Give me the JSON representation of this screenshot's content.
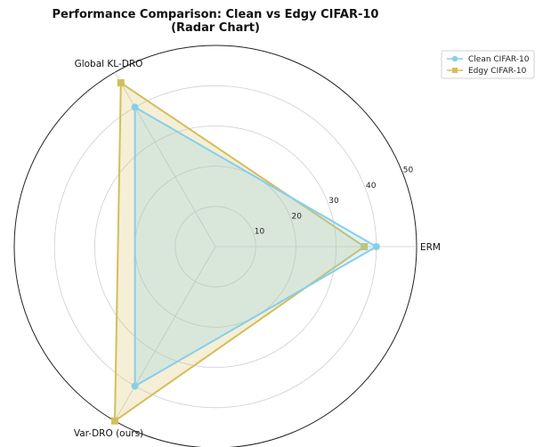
{
  "chart_data": {
    "type": "radar",
    "title_lines": [
      "Performance Comparison: Clean vs Edgy CIFAR-10",
      "(Radar Chart)"
    ],
    "axes": [
      "ERM",
      "Global KL-DRO",
      "Var-DRO (ours)"
    ],
    "radial_ticks": [
      10,
      20,
      30,
      40,
      50
    ],
    "rlim": [
      0,
      50
    ],
    "grid": true,
    "legend_position": "top-right",
    "series": [
      {
        "name": "Clean CIFAR-10",
        "values": [
          40,
          40,
          40
        ],
        "color": "#87CEEB",
        "marker": "circle"
      },
      {
        "name": "Edgy CIFAR-10",
        "values": [
          37,
          47,
          50
        ],
        "color": "#D4BE5A",
        "marker": "square"
      }
    ]
  }
}
